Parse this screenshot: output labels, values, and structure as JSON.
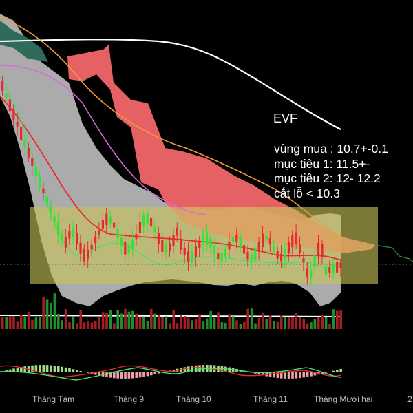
{
  "chart_data": {
    "type": "candlestick",
    "ticker": "EVF",
    "x_labels": [
      "Tháng Tám",
      "Tháng 9",
      "Tháng 10",
      "Tháng 11",
      "Tháng Mười hai",
      "2"
    ],
    "annotations": [
      "vùng mua : 10.7+-0.1",
      "mục tiêu 1: 11.5+-",
      "mục tiêu 2: 12- 12.2",
      "cắt lỗ < 10.3"
    ],
    "buy_zone": [
      10.6,
      10.8
    ],
    "targets": [
      11.5,
      12.1
    ],
    "stop_loss": 10.3,
    "colors": {
      "up": "#33e233",
      "down": "#e8272f",
      "cloud_bear": "#ff6b6e",
      "buy_zone": "#c8c35a",
      "bollinger": "#c9c9c9",
      "ma200": "#ffffff",
      "ma100": "#f09a3e",
      "ma50": "#d86ad8",
      "ma20": "#e52d2d",
      "ma10": "#49e06a"
    }
  }
}
